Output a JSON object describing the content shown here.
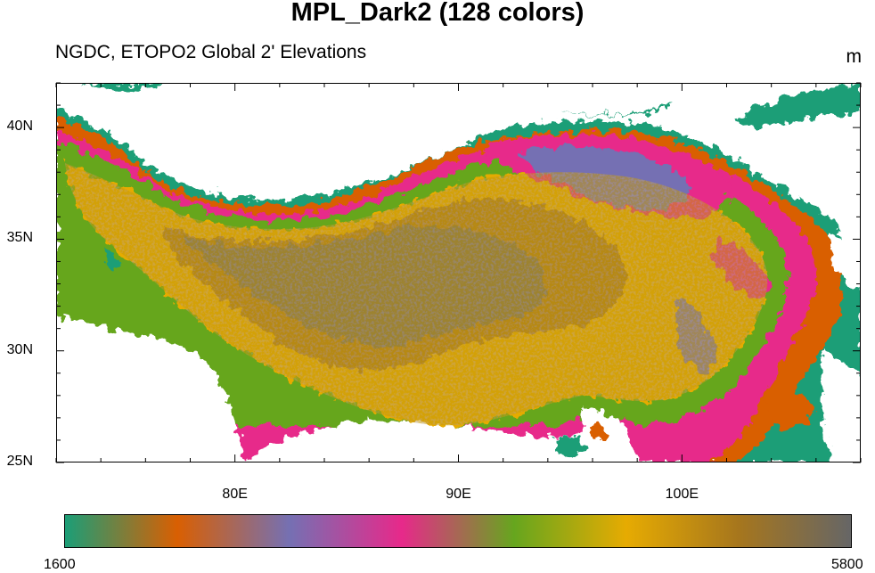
{
  "title": "MPL_Dark2 (128 colors)",
  "subtitle": "NGDC, ETOPO2 Global 2' Elevations",
  "units": "m",
  "map": {
    "region": "Tibetan Plateau",
    "lon_range": [
      72,
      108
    ],
    "lat_range": [
      25,
      42
    ],
    "lat_labels": [
      "40N",
      "35N",
      "30N",
      "25N"
    ],
    "lat_values": [
      40,
      35,
      30,
      25
    ],
    "lon_labels": [
      "80E",
      "90E",
      "100E"
    ],
    "lon_values": [
      80,
      90,
      100
    ],
    "below_range_color": "#ffffff"
  },
  "colorbar": {
    "min_label": "1600",
    "max_label": "5800",
    "min": 1600,
    "max": 5800,
    "colors": [
      "#1b9e77",
      "#d95f02",
      "#7570b3",
      "#e7298a",
      "#66a61e",
      "#e6ab02",
      "#a6761d",
      "#666666"
    ]
  }
}
